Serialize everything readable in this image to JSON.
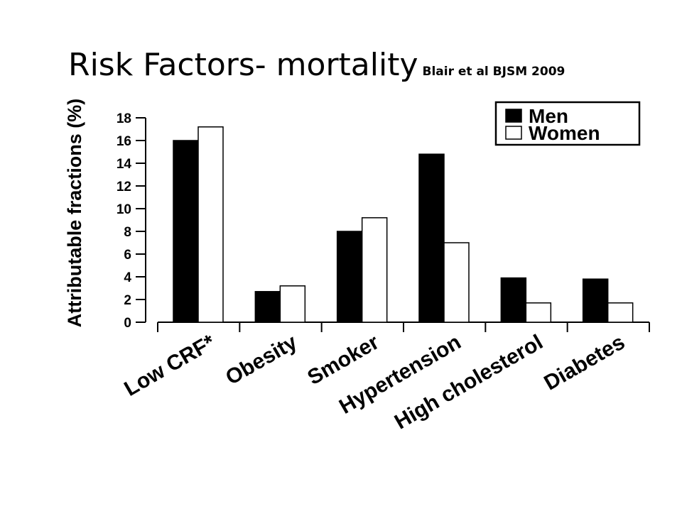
{
  "slide": {
    "title": "Risk Factors- mortality",
    "citation": "Blair et al BJSM 2009"
  },
  "chart_data": {
    "type": "bar",
    "title": "",
    "xlabel": "",
    "ylabel": "Attributable fractions (%)",
    "ylim": [
      0,
      18
    ],
    "yticks": [
      0,
      2,
      4,
      6,
      8,
      10,
      12,
      14,
      16,
      18
    ],
    "grid": false,
    "legend_position": "top-right",
    "categories": [
      "Low CRF*",
      "Obesity",
      "Smoker",
      "Hypertension",
      "High cholesterol",
      "Diabetes"
    ],
    "series": [
      {
        "name": "Men",
        "color": "#000000",
        "values": [
          16,
          2.7,
          8,
          14.8,
          3.9,
          3.8
        ]
      },
      {
        "name": "Women",
        "color": "#ffffff",
        "values": [
          17.2,
          3.2,
          9.2,
          7,
          1.7,
          1.7
        ]
      }
    ]
  }
}
